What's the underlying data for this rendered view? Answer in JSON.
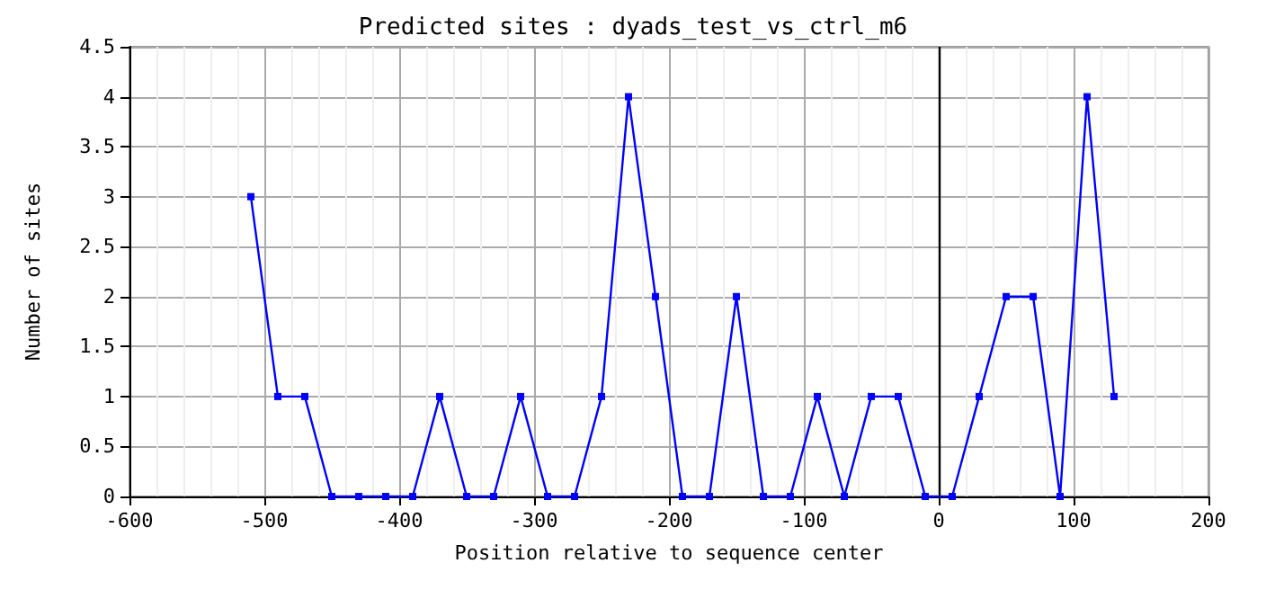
{
  "chart_data": {
    "type": "line",
    "title": "Predicted sites : dyads_test_vs_ctrl_m6",
    "xlabel": "Position relative to sequence center",
    "ylabel": "Number of sites",
    "x": [
      -510,
      -490,
      -470,
      -450,
      -430,
      -410,
      -390,
      -370,
      -350,
      -330,
      -310,
      -290,
      -270,
      -250,
      -230,
      -210,
      -190,
      -170,
      -150,
      -130,
      -110,
      -90,
      -70,
      -50,
      -30,
      -10,
      10,
      30,
      50,
      70,
      90,
      110,
      130
    ],
    "series": [
      {
        "color": "#0000ff",
        "values": [
          3,
          1,
          1,
          0,
          0,
          0,
          0,
          1,
          0,
          0,
          1,
          0,
          0,
          1,
          4,
          2,
          0,
          0,
          2,
          0,
          0,
          1,
          0,
          1,
          1,
          0,
          0,
          1,
          2,
          2,
          0,
          4,
          1
        ]
      }
    ],
    "xlim": [
      -600,
      200
    ],
    "xticks": [
      -600,
      -500,
      -400,
      -300,
      -200,
      -100,
      0,
      100,
      200
    ],
    "ylim": [
      0,
      4.5
    ],
    "yticks": [
      0,
      0.5,
      1,
      1.5,
      2,
      2.5,
      3,
      3.5,
      4,
      4.5
    ],
    "ref_lines": [
      {
        "axis": "x",
        "value": 0,
        "color": "#000000"
      }
    ],
    "grid": true,
    "marker": "square",
    "line_style": "solid"
  }
}
